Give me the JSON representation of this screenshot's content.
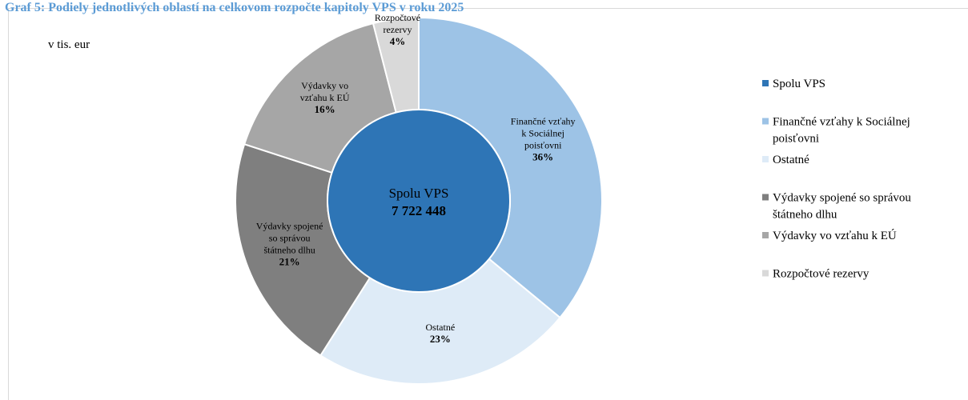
{
  "chart_data": {
    "type": "sunburst",
    "title": "Graf 5: Podiely jednotlivých oblastí na celkovom rozpočte kapitoly VPS v roku 2025",
    "unit_label": "v tis. eur",
    "center": {
      "name": "Spolu VPS",
      "value": 7722448,
      "value_label": "7 722 448",
      "color": "#2e75b6"
    },
    "categories": [
      "Finančné vzťahy k Sociálnej poisťovni",
      "Ostatné",
      "Výdavky spojené so správou štátneho dlhu",
      "Výdavky vo vzťahu k EÚ",
      "Rozpočtové rezervy"
    ],
    "values": [
      36,
      23,
      21,
      16,
      4
    ],
    "value_labels": [
      "36%",
      "23%",
      "21%",
      "16%",
      "4%"
    ],
    "colors": [
      "#9dc3e6",
      "#deebf7",
      "#7f7f7f",
      "#a6a6a6",
      "#d9d9d9"
    ]
  }
}
